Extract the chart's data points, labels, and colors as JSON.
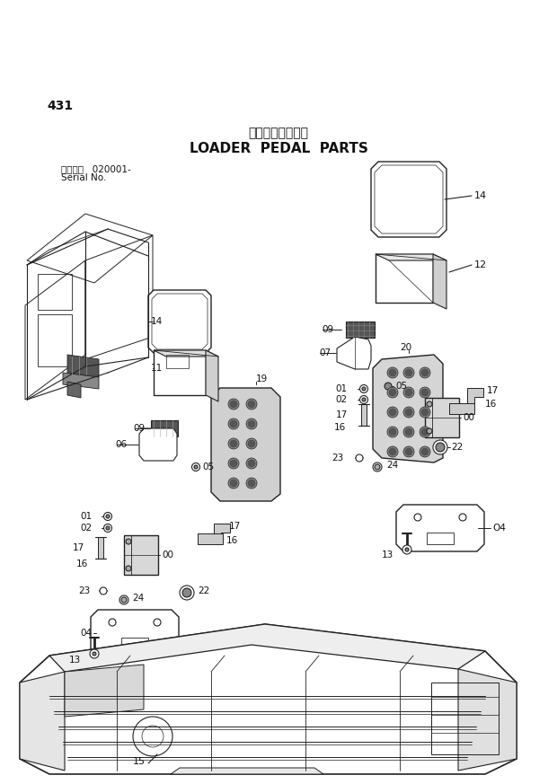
{
  "title_jp": "ローダベダル部品",
  "title_en": "LOADER  PEDAL  PARTS",
  "page_number": "431",
  "serial_label": "適用号機   020001-",
  "serial_label2": "Serial No.",
  "bg_color": "#ffffff",
  "lc": "#222222",
  "tc": "#111111"
}
